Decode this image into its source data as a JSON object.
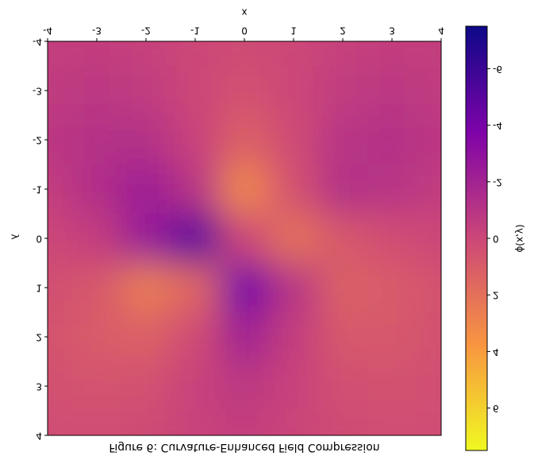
{
  "chart_data": {
    "type": "heatmap",
    "title": "Figure 6: Curvature-Enhanced Field Compression",
    "x_label": "x",
    "y_label": "y",
    "colorbar_label": "ϕ(x,y)",
    "x": [
      -4,
      -3,
      -2,
      -1,
      0,
      1,
      2,
      3,
      4
    ],
    "y": [
      -4,
      -3,
      -2,
      -1,
      0,
      1,
      2,
      3,
      4
    ],
    "z": [
      [
        -0.5,
        -0.5,
        -0.3,
        0,
        0.2,
        0,
        -0.3,
        -0.5,
        -0.5
      ],
      [
        -0.6,
        -0.8,
        -0.6,
        0,
        0.5,
        0,
        -0.6,
        -0.8,
        -0.6
      ],
      [
        -0.8,
        -1.2,
        -1.2,
        -0.2,
        1.2,
        0.2,
        -1,
        -1.2,
        -0.8
      ],
      [
        -0.5,
        -1.3,
        -2.2,
        -1,
        3,
        0.5,
        -1.2,
        -1,
        -0.6
      ],
      [
        0,
        -0.5,
        -2.5,
        -5,
        0,
        2,
        0.8,
        0.3,
        0
      ],
      [
        0.4,
        0.8,
        2.5,
        1.5,
        -4,
        -1,
        1.2,
        1,
        0.6
      ],
      [
        0.6,
        1,
        1.2,
        0.2,
        -2,
        -0.5,
        0.8,
        0.8,
        0.5
      ],
      [
        0.5,
        0.6,
        0.5,
        -0.2,
        -0.8,
        -0.2,
        0.4,
        0.5,
        0.4
      ],
      [
        0.3,
        0.3,
        0.2,
        -0.2,
        -0.4,
        -0.1,
        0.2,
        0.3,
        0.3
      ]
    ],
    "xlim": [
      -4,
      4
    ],
    "ylim": [
      -4,
      4
    ],
    "clim": [
      -7.5,
      7.5
    ],
    "xticks": [
      -4,
      -3,
      -2,
      -1,
      0,
      1,
      2,
      3,
      4
    ],
    "yticks": [
      -4,
      -3,
      -2,
      -1,
      0,
      1,
      2,
      3,
      4
    ],
    "cticks": [
      -6,
      -4,
      -2,
      0,
      2,
      4,
      6
    ],
    "colormap": "plasma"
  }
}
